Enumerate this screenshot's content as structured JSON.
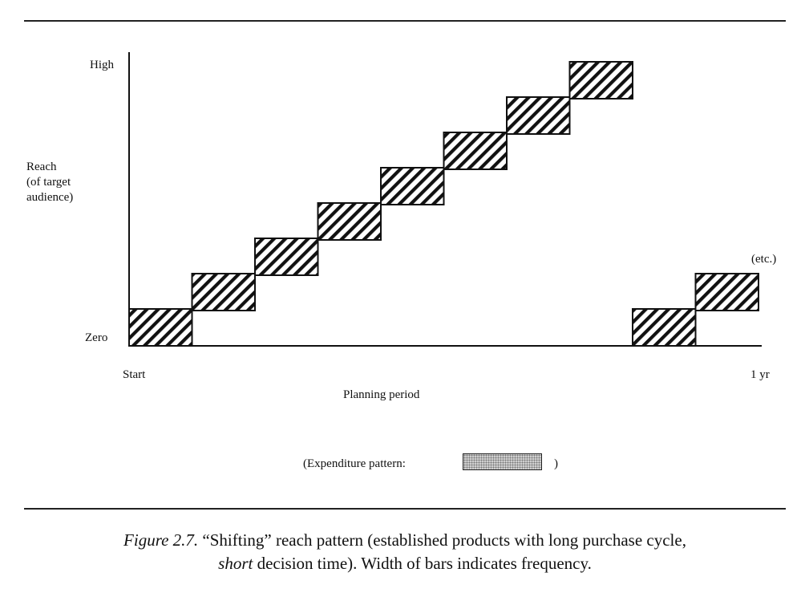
{
  "chart_data": {
    "type": "bar",
    "description_kind": "stepped floating bars",
    "y_axis": {
      "label_lines": [
        "Reach",
        "(of target",
        "audience)"
      ],
      "tick_labels": {
        "low": "Zero",
        "high": "High"
      },
      "range": [
        0,
        8
      ]
    },
    "x_axis": {
      "label": "Planning period",
      "tick_labels": {
        "start": "Start",
        "end": "1 yr"
      },
      "range": [
        0,
        10
      ]
    },
    "bars": [
      {
        "x_start": 0.0,
        "x_end": 1.0,
        "level": 0
      },
      {
        "x_start": 1.0,
        "x_end": 2.0,
        "level": 1
      },
      {
        "x_start": 2.0,
        "x_end": 3.0,
        "level": 2
      },
      {
        "x_start": 3.0,
        "x_end": 4.0,
        "level": 3
      },
      {
        "x_start": 4.0,
        "x_end": 5.0,
        "level": 4
      },
      {
        "x_start": 5.0,
        "x_end": 6.0,
        "level": 5
      },
      {
        "x_start": 6.0,
        "x_end": 7.0,
        "level": 6
      },
      {
        "x_start": 7.0,
        "x_end": 8.0,
        "level": 7
      },
      {
        "x_start": 8.0,
        "x_end": 9.0,
        "level": 0
      },
      {
        "x_start": 9.0,
        "x_end": 10.0,
        "level": 1
      }
    ],
    "annotation": "(etc.)",
    "legend": {
      "prefix": "(Expenditure pattern:",
      "suffix": ")"
    },
    "colors": {
      "bar_fill": "#ffffff",
      "hatch": "#111111",
      "axis": "#111111"
    }
  },
  "caption": {
    "figure_label": "Figure 2.7.",
    "part1": "“Shifting” reach pattern (established products with long purchase cycle,",
    "emph": "short",
    "part2": "decision time).  Width of bars indicates frequency."
  }
}
